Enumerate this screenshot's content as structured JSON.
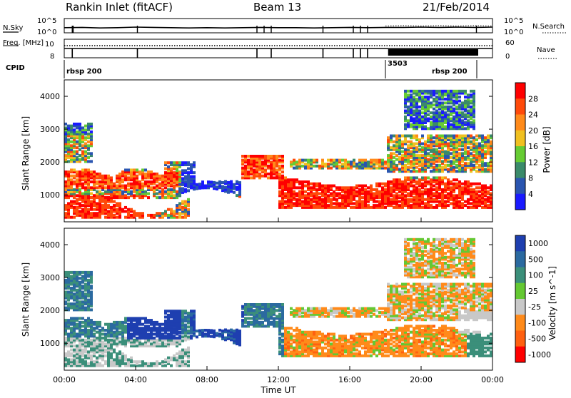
{
  "header": {
    "station": "Rankin Inlet (fitACF)",
    "beam": "Beam 13",
    "date": "21/Feb/2014"
  },
  "chart_data": [
    {
      "type": "line",
      "panel": "noise",
      "left_label": "N.Sky",
      "right_label": "N.Search",
      "left_ticks": [
        "10^5",
        "10^0"
      ],
      "right_ticks": [
        "10^5",
        "10^0"
      ],
      "x_range": [
        0,
        24
      ],
      "series": [
        {
          "name": "N.Sky",
          "x": [
            0,
            1,
            2,
            3,
            4,
            5,
            6,
            7,
            8,
            9,
            10,
            11,
            12,
            13,
            14,
            15,
            16,
            17,
            18,
            19,
            20,
            21,
            22,
            23,
            24
          ],
          "y": [
            1.8,
            1.9,
            1.7,
            1.8,
            2.0,
            1.9,
            1.8,
            1.7,
            1.8,
            1.7,
            1.8,
            1.9,
            1.8,
            1.8,
            1.7,
            1.8,
            1.9,
            1.8,
            1.9,
            1.9,
            2.0,
            1.9,
            2.0,
            1.9,
            2.0
          ]
        },
        {
          "name": "N.Search",
          "x": [
            18,
            19,
            20,
            21,
            22,
            23,
            24
          ],
          "y": [
            2.4,
            2.5,
            2.4,
            2.5,
            2.4,
            2.5,
            2.4
          ]
        }
      ]
    },
    {
      "type": "line",
      "panel": "frequency",
      "left_label": "Freq. [MHz]",
      "right_label": "Nave",
      "left_ticks": [
        "10",
        "8"
      ],
      "right_ticks": [
        "60",
        "0"
      ],
      "x_range": [
        0,
        24
      ],
      "series": [
        {
          "name": "Nave",
          "x": [
            0,
            24
          ],
          "y": [
            44,
            44
          ]
        }
      ]
    },
    {
      "type": "table",
      "panel": "cpid",
      "label": "CPID",
      "segments": [
        {
          "text": "rbsp 200",
          "start": 0,
          "end": 18
        },
        {
          "text": "3503",
          "start": 18,
          "end": 18.5
        },
        {
          "text": "rbsp 200",
          "start": 18.5,
          "end": 23
        }
      ]
    },
    {
      "type": "heatmap",
      "panel": "power",
      "ylabel": "Slant Range [km]",
      "colorbar_label": "Power [dB]",
      "colorbar_ticks": [
        "28",
        "24",
        "20",
        "16",
        "12",
        "8",
        "4"
      ],
      "y_ticks": [
        "4000",
        "3000",
        "2000",
        "1000"
      ],
      "x_range": [
        0,
        24
      ],
      "y_range": [
        180,
        4500
      ],
      "colors": [
        "#1a1aff",
        "#2a55b0",
        "#3a8a6a",
        "#66cc33",
        "#f0c020",
        "#ff8a1a",
        "#ff4a0a",
        "#ff0000"
      ]
    },
    {
      "type": "heatmap",
      "panel": "velocity",
      "ylabel": "Slant Range [km]",
      "xlabel": "Time UT",
      "colorbar_label": "Velocity [m s^-1]",
      "colorbar_ticks": [
        "1000",
        "500",
        "100",
        "25",
        "-25",
        "-100",
        "-500",
        "-1000"
      ],
      "y_ticks": [
        "4000",
        "3000",
        "2000",
        "1000"
      ],
      "x_ticks": [
        "00:00",
        "04:00",
        "08:00",
        "12:00",
        "16:00",
        "20:00",
        "00:00"
      ],
      "x_range": [
        0,
        24
      ],
      "y_range": [
        180,
        4500
      ],
      "colors": [
        "#1e3fb0",
        "#2b6aa0",
        "#3b8f7a",
        "#64c832",
        "#c8c8c8",
        "#ff8a1a",
        "#ff6010",
        "#ff0000"
      ]
    }
  ]
}
